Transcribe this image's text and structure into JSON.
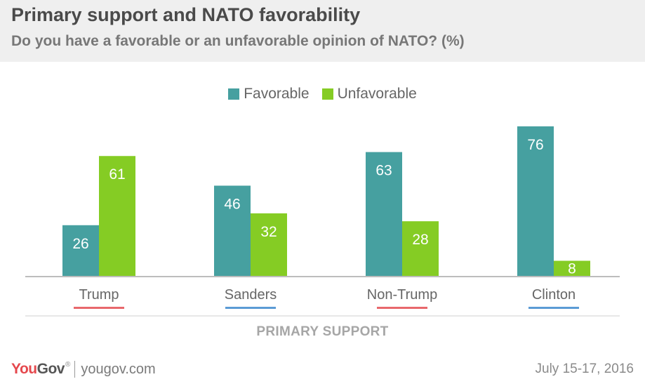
{
  "header": {
    "title": "Primary support and NATO favorability",
    "subtitle": "Do you have a favorable or an unfavorable opinion of NATO? (%)"
  },
  "legend": [
    {
      "label": "Favorable",
      "color": "#46a0a0"
    },
    {
      "label": "Unfavorable",
      "color": "#85cc24"
    }
  ],
  "chart_data": {
    "type": "bar",
    "title": "Primary support and NATO favorability",
    "subtitle": "Do you have a favorable or an unfavorable opinion of NATO? (%)",
    "categories": [
      "Trump",
      "Sanders",
      "Non-Trump",
      "Clinton"
    ],
    "category_underline_colors": [
      "#e8686c",
      "#5b9bd5",
      "#e8686c",
      "#5b9bd5"
    ],
    "series": [
      {
        "name": "Favorable",
        "color": "#46a0a0",
        "values": [
          26,
          46,
          63,
          76
        ]
      },
      {
        "name": "Unfavorable",
        "color": "#85cc24",
        "values": [
          61,
          32,
          28,
          8
        ]
      }
    ],
    "xlabel": "PRIMARY SUPPORT",
    "ylabel": "",
    "ylim": [
      0,
      76
    ],
    "grid": false,
    "legend_position": "top-center"
  },
  "footer": {
    "brand_you": "You",
    "brand_gov": "Gov",
    "brand_mark": "®",
    "site": "yougov.com",
    "date": "July 15-17, 2016"
  }
}
